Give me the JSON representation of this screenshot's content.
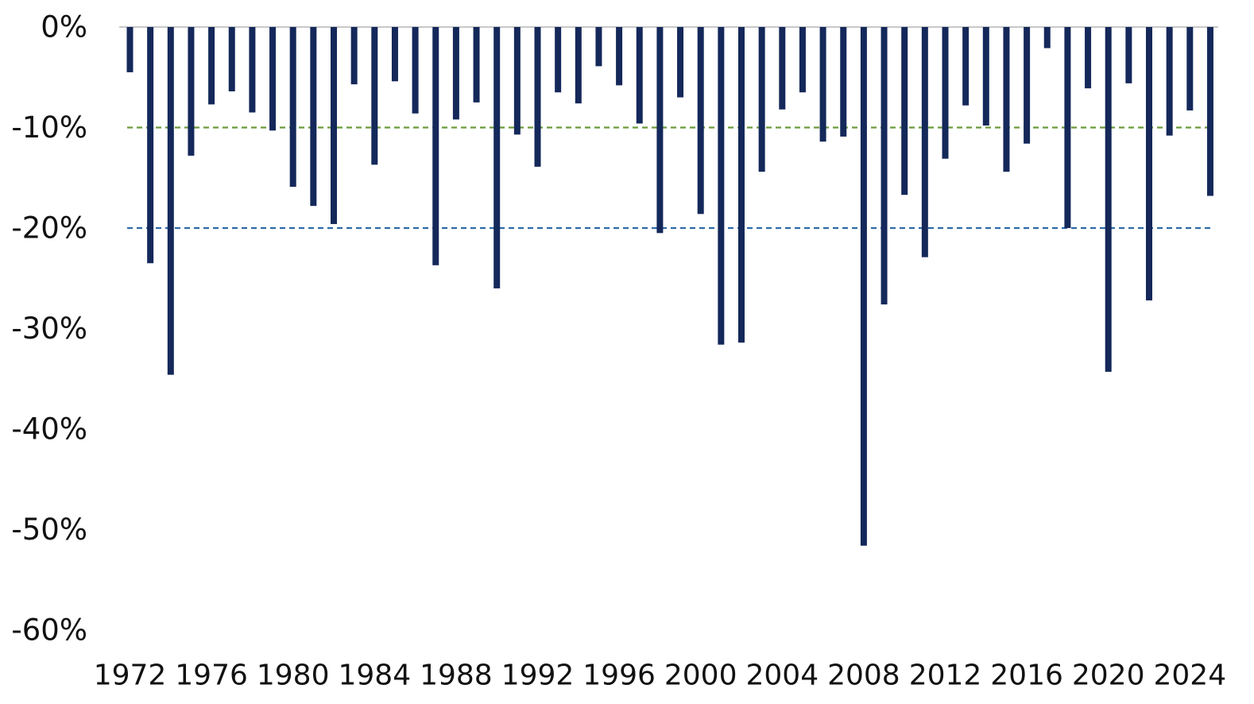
{
  "chart_data": {
    "type": "bar",
    "title": "",
    "xlabel": "",
    "ylabel": "",
    "ylim": [
      -60,
      0
    ],
    "y_ticks": [
      0,
      -10,
      -20,
      -30,
      -40,
      -50,
      -60
    ],
    "y_tick_labels": [
      "0%",
      "-10%",
      "-20%",
      "-30%",
      "-40%",
      "-50%",
      "-60%"
    ],
    "x_tick_labels": [
      "1972",
      "1976",
      "1980",
      "1984",
      "1988",
      "1992",
      "1996",
      "2000",
      "2004",
      "2008",
      "2012",
      "2016",
      "2020",
      "2024"
    ],
    "categories": [
      1972,
      1973,
      1974,
      1975,
      1976,
      1977,
      1978,
      1979,
      1980,
      1981,
      1982,
      1983,
      1984,
      1985,
      1986,
      1987,
      1988,
      1989,
      1990,
      1991,
      1992,
      1993,
      1994,
      1995,
      1996,
      1997,
      1998,
      1999,
      2000,
      2001,
      2002,
      2003,
      2004,
      2005,
      2006,
      2007,
      2008,
      2009,
      2010,
      2011,
      2012,
      2013,
      2014,
      2015,
      2016,
      2017,
      2018,
      2019,
      2020,
      2021,
      2022,
      2023,
      2024,
      2025
    ],
    "values": [
      -4.5,
      -23.5,
      -34.6,
      -12.8,
      -7.7,
      -6.4,
      -8.5,
      -10.3,
      -15.9,
      -17.8,
      -19.6,
      -5.7,
      -13.7,
      -5.4,
      -8.6,
      -23.7,
      -9.2,
      -7.5,
      -26.0,
      -10.7,
      -13.9,
      -6.5,
      -7.6,
      -3.9,
      -5.8,
      -9.6,
      -20.5,
      -7.0,
      -18.6,
      -31.6,
      -31.4,
      -14.4,
      -8.2,
      -6.5,
      -11.4,
      -10.9,
      -51.6,
      -27.6,
      -16.7,
      -22.9,
      -13.1,
      -7.8,
      -9.8,
      -14.4,
      -11.6,
      -2.1,
      -20.0,
      -6.1,
      -34.3,
      -5.6,
      -27.2,
      -10.8,
      -8.3,
      -16.8
    ],
    "reference_lines": [
      {
        "value": -10,
        "color": "#6b9a3a",
        "style": "dashed"
      },
      {
        "value": -20,
        "color": "#2f6aa8",
        "style": "dashed"
      }
    ],
    "bar_color": "#14285a",
    "axis_color": "#c8c8c8",
    "grid": false,
    "legend": "none"
  }
}
